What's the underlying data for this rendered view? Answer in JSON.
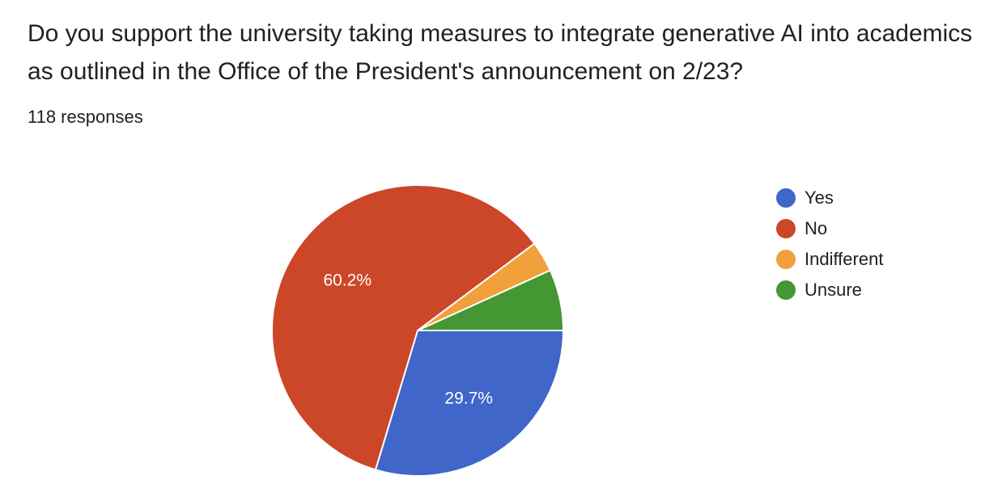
{
  "question": {
    "title": "Do you support the university taking measures to integrate generative AI into academics as outlined in the Office of the President's announcement on 2/23?",
    "response_count": "118 responses"
  },
  "chart_data": {
    "type": "pie",
    "categories": [
      "Yes",
      "No",
      "Indifferent",
      "Unsure"
    ],
    "values": [
      29.7,
      60.2,
      3.4,
      6.8
    ],
    "data_labels": [
      "29.7%",
      "60.2%",
      "",
      ""
    ],
    "colors": [
      "#3f66c8",
      "#cc4628",
      "#f2a03b",
      "#449733"
    ],
    "legend": {
      "placement": "right",
      "entries": [
        "Yes",
        "No",
        "Indifferent",
        "Unsure"
      ]
    },
    "start_angle": "3 o'clock",
    "direction": "clockwise"
  }
}
